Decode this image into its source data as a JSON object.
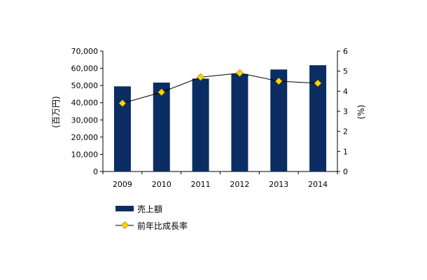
{
  "chart_data": {
    "type": "bar+line",
    "categories": [
      "2009",
      "2010",
      "2011",
      "2012",
      "2013",
      "2014"
    ],
    "series": [
      {
        "name": "売上額",
        "type": "bar",
        "axis": "left",
        "color": "#0b2d63",
        "values": [
          49500,
          51700,
          54000,
          56700,
          59300,
          61800
        ]
      },
      {
        "name": "前年比成長率",
        "type": "line",
        "axis": "right",
        "line_color": "#000000",
        "marker_color": "#ffd700",
        "values": [
          3.4,
          3.95,
          4.7,
          4.9,
          4.5,
          4.4
        ]
      }
    ],
    "ylabel": "(百万円)",
    "y2label": "(%)",
    "ylim": [
      0,
      70000
    ],
    "y2lim": [
      0,
      6
    ],
    "yticks": [
      "0",
      "10,000",
      "20,000",
      "30,000",
      "40,000",
      "50,000",
      "60,000",
      "70,000"
    ],
    "y2ticks": [
      "0",
      "1",
      "2",
      "3",
      "4",
      "5",
      "6"
    ],
    "grid": false,
    "legend_position": "bottom"
  }
}
